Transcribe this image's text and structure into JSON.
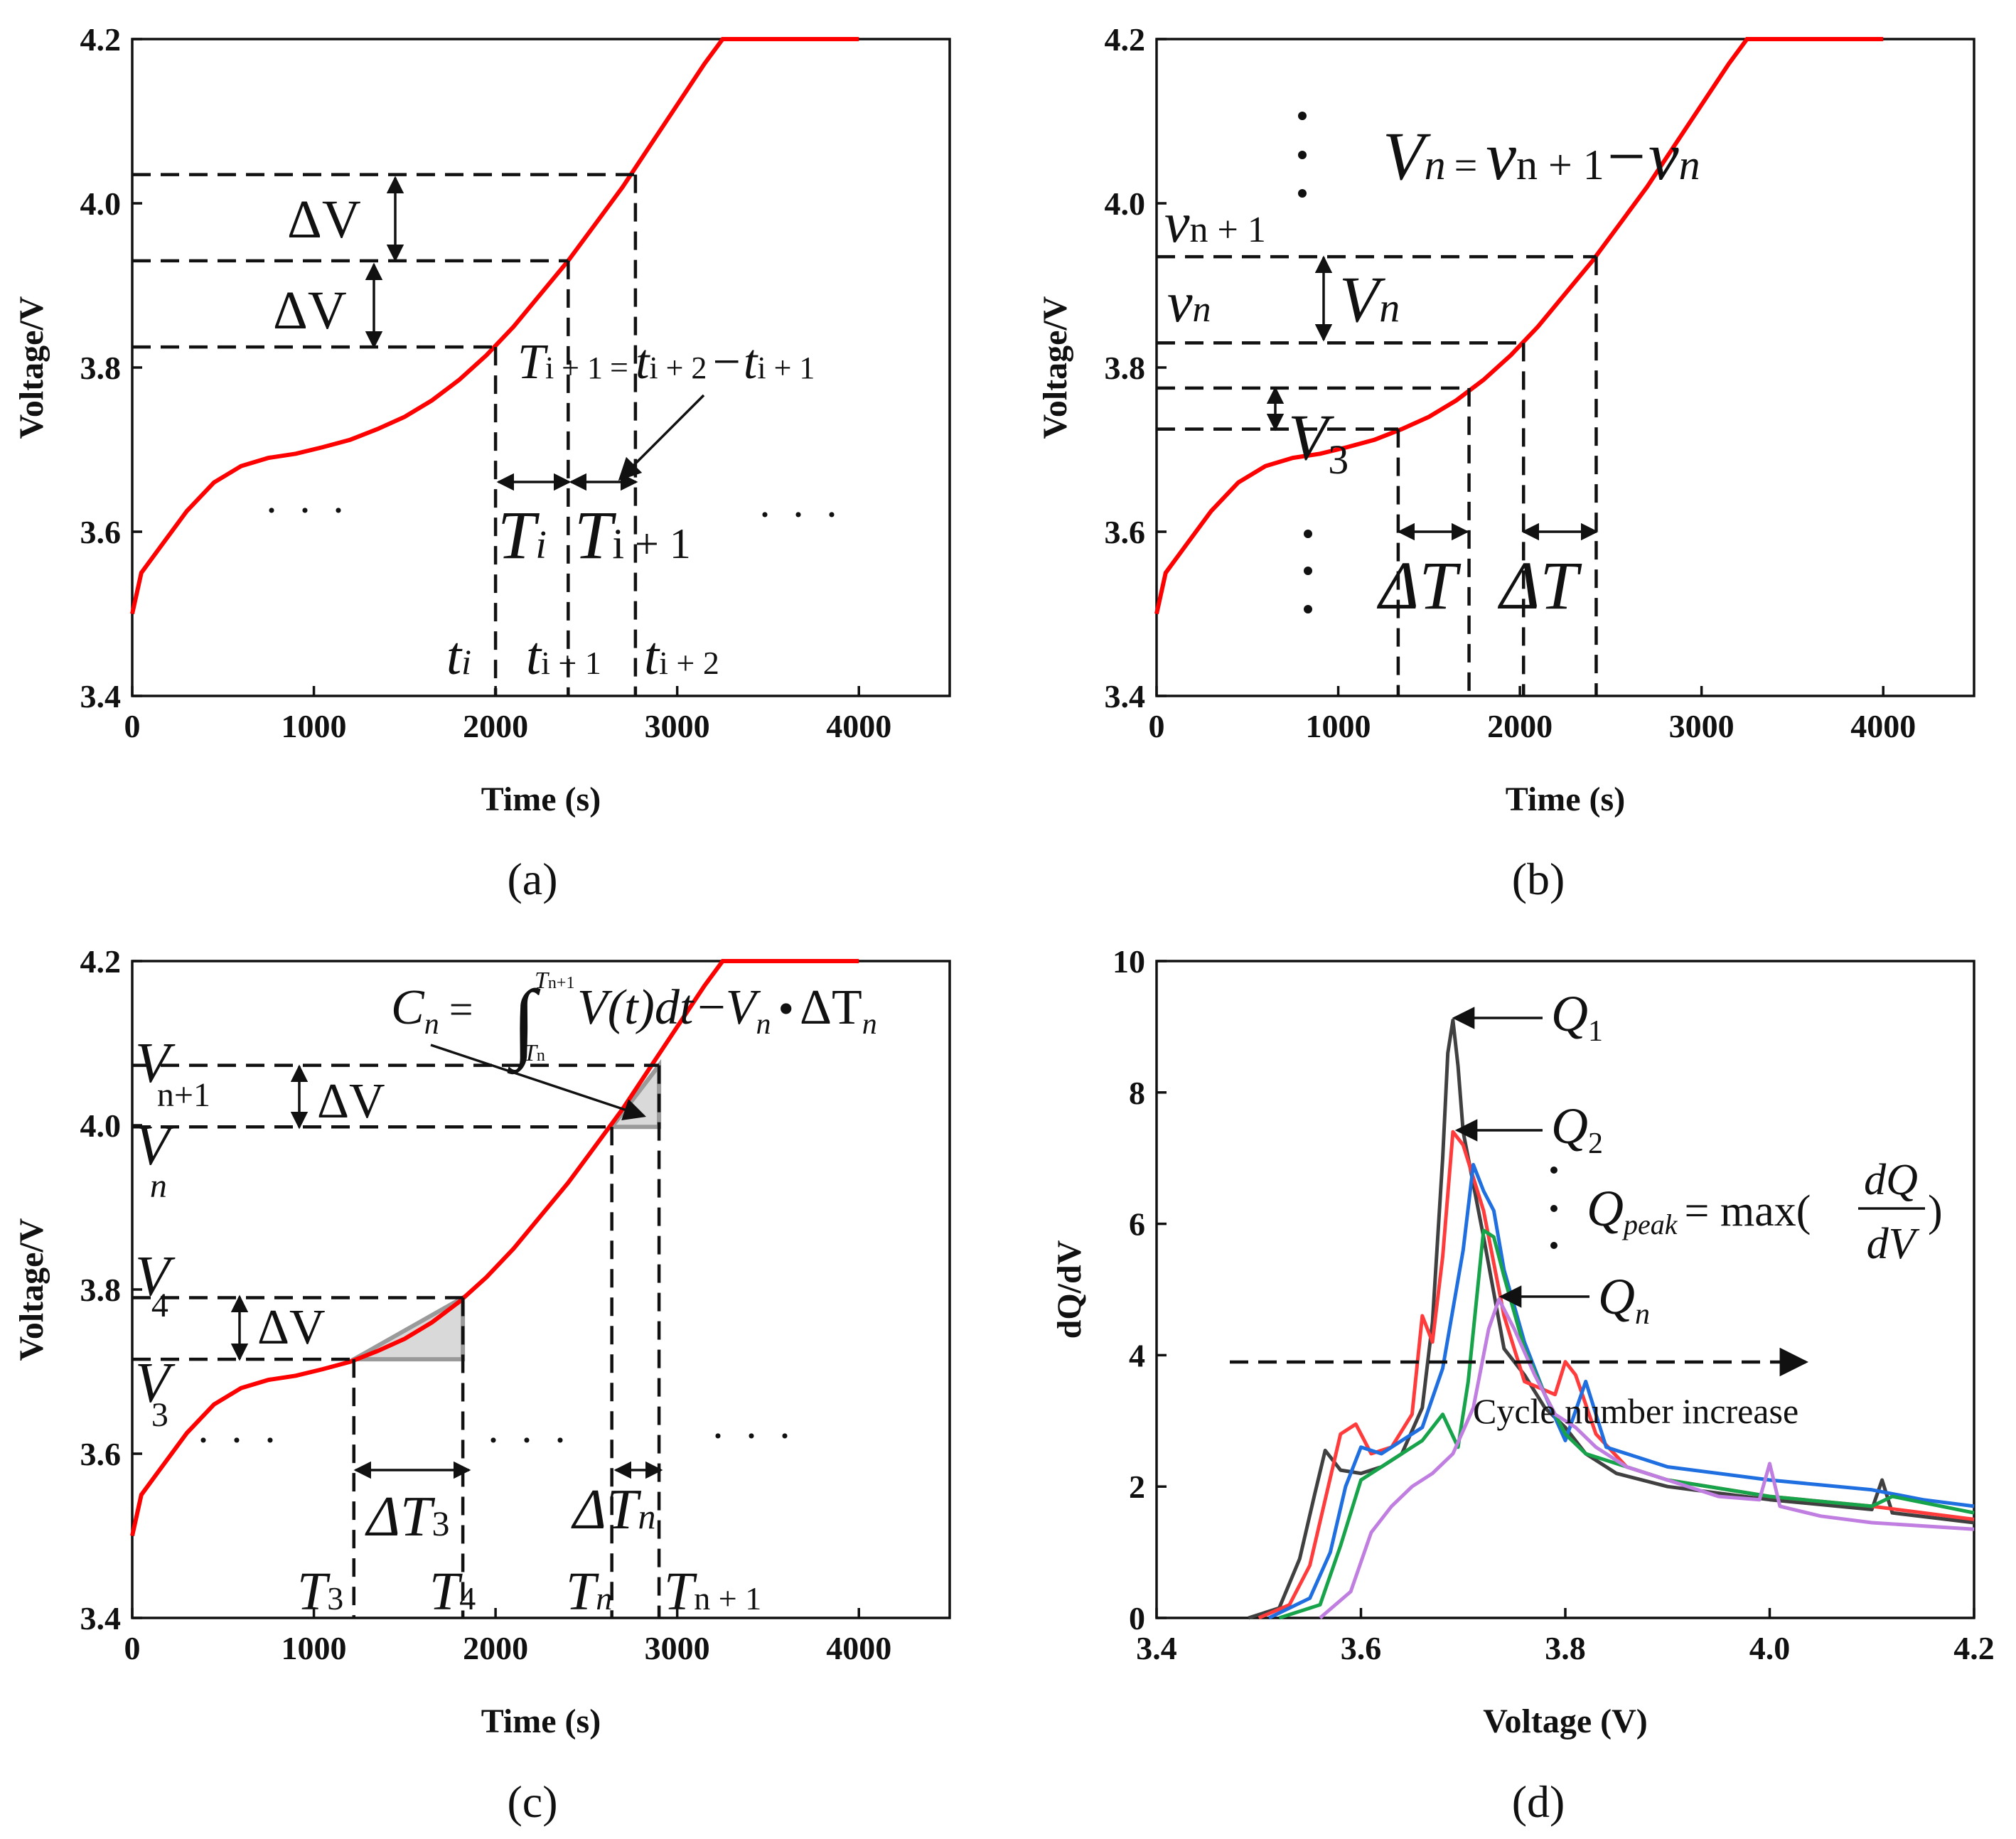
{
  "colors": {
    "charge_curve": "#ff0000",
    "series": [
      "#404040",
      "#ff3b3b",
      "#1f6fe0",
      "#16a34a",
      "#c07ee0"
    ],
    "triangle_fill": "#d9d9d9",
    "triangle_edge": "#9a9a9a"
  },
  "chart_data": [
    {
      "id": "a",
      "type": "line",
      "panel_label": "(a)",
      "xlabel": "Time (s)",
      "ylabel": "Voltage/V",
      "xlim": [
        0,
        4500
      ],
      "ylim": [
        3.4,
        4.2
      ],
      "xticks": [
        0,
        1000,
        2000,
        3000,
        4000
      ],
      "xtick_labels": [
        "0",
        "1000",
        "2000",
        "3000",
        "4000"
      ],
      "yticks": [
        3.4,
        3.6,
        3.8,
        4.0,
        4.2
      ],
      "ytick_labels": [
        "3.4",
        "3.6",
        "3.8",
        "4.0",
        "4.2"
      ],
      "series": [
        {
          "name": "charge voltage",
          "x": [
            0,
            50,
            150,
            300,
            450,
            600,
            750,
            900,
            1050,
            1200,
            1350,
            1500,
            1650,
            1800,
            1950,
            2100,
            2250,
            2400,
            2550,
            2700,
            2850,
            3000,
            3150,
            3250,
            3300,
            3500,
            4000
          ],
          "y": [
            3.5,
            3.55,
            3.58,
            3.625,
            3.66,
            3.68,
            3.69,
            3.695,
            3.703,
            3.712,
            3.725,
            3.74,
            3.76,
            3.785,
            3.815,
            3.85,
            3.89,
            3.93,
            3.975,
            4.02,
            4.07,
            4.12,
            4.17,
            4.2,
            4.2,
            4.2,
            4.2
          ]
        }
      ],
      "annotations": {
        "guide_times": [
          2000,
          2400,
          2770
        ],
        "guide_voltages": [
          3.825,
          3.93,
          4.035
        ],
        "delta_v_1": "ΔV",
        "delta_v_2": "ΔV",
        "T_i_main": "T",
        "T_i_sub": "i",
        "T_i1_main": "T",
        "T_i1_sub": "i + 1",
        "t_i_main": "t",
        "t_i_sub": "i",
        "t_i1_main": "t",
        "t_i1_sub": "i + 1",
        "t_i2_main": "t",
        "t_i2_sub": "i + 2",
        "eq_lhs": "T",
        "eq_lhs_sub": "i + 1",
        "eq_eq": "=",
        "eq_t1": "t",
        "eq_t1_sub": "i + 2",
        "eq_minus": "−",
        "eq_t2": "t",
        "eq_t2_sub": "i + 1",
        "ellipsis_left": "· · ·",
        "ellipsis_right": "· · ·"
      }
    },
    {
      "id": "b",
      "type": "line",
      "panel_label": "(b)",
      "xlabel": "Time (s)",
      "ylabel": "Voltage/V",
      "xlim": [
        0,
        4500
      ],
      "ylim": [
        3.4,
        4.2
      ],
      "xticks": [
        0,
        1000,
        2000,
        3000,
        4000
      ],
      "xtick_labels": [
        "0",
        "1000",
        "2000",
        "3000",
        "4000"
      ],
      "yticks": [
        3.4,
        3.6,
        3.8,
        4.0,
        4.2
      ],
      "ytick_labels": [
        "3.4",
        "3.6",
        "3.8",
        "4.0",
        "4.2"
      ],
      "series": [
        {
          "name": "charge voltage",
          "x": [
            0,
            50,
            150,
            300,
            450,
            600,
            750,
            900,
            1050,
            1200,
            1350,
            1500,
            1650,
            1800,
            1950,
            2100,
            2250,
            2400,
            2550,
            2700,
            2850,
            3000,
            3150,
            3250,
            3300,
            3500,
            4000
          ],
          "y": [
            3.5,
            3.55,
            3.58,
            3.625,
            3.66,
            3.68,
            3.69,
            3.695,
            3.703,
            3.712,
            3.725,
            3.74,
            3.76,
            3.785,
            3.815,
            3.85,
            3.89,
            3.93,
            3.975,
            4.02,
            4.07,
            4.12,
            4.17,
            4.2,
            4.2,
            4.2,
            4.2
          ]
        }
      ],
      "annotations": {
        "guide_times": [
          1330,
          1720,
          2020,
          2420
        ],
        "guide_voltages": [
          3.725,
          3.775,
          3.83,
          3.935
        ],
        "v_n1_main": "v",
        "v_n1_sub": "n + 1",
        "v_n_main": "v",
        "v_n_sub": "n",
        "Vn_label_main": "V",
        "Vn_label_sub": "n",
        "V3_main": "V",
        "V3_sub": "3",
        "dT1": "ΔT",
        "dT2": "ΔT",
        "eq_lhs": "V",
        "eq_lhs_sub": "n",
        "eq_eq": "=",
        "eq_t1": "v",
        "eq_t1_sub": "n + 1",
        "eq_minus": "−",
        "eq_t2": "v",
        "eq_t2_sub": "n"
      }
    },
    {
      "id": "c",
      "type": "line",
      "panel_label": "(c)",
      "xlabel": "Time (s)",
      "ylabel": "Voltage/V",
      "xlim": [
        0,
        4500
      ],
      "ylim": [
        3.4,
        4.2
      ],
      "xticks": [
        0,
        1000,
        2000,
        3000,
        4000
      ],
      "xtick_labels": [
        "0",
        "1000",
        "2000",
        "3000",
        "4000"
      ],
      "yticks": [
        3.4,
        3.6,
        3.8,
        4.0,
        4.2
      ],
      "ytick_labels": [
        "3.4",
        "3.6",
        "3.8",
        "4.0",
        "4.2"
      ],
      "series": [
        {
          "name": "charge voltage",
          "x": [
            0,
            50,
            150,
            300,
            450,
            600,
            750,
            900,
            1050,
            1200,
            1350,
            1500,
            1650,
            1800,
            1950,
            2100,
            2250,
            2400,
            2550,
            2700,
            2850,
            3000,
            3150,
            3250,
            3300,
            3500,
            4000
          ],
          "y": [
            3.5,
            3.55,
            3.58,
            3.625,
            3.66,
            3.68,
            3.69,
            3.695,
            3.703,
            3.712,
            3.725,
            3.74,
            3.76,
            3.785,
            3.815,
            3.85,
            3.89,
            3.93,
            3.975,
            4.02,
            4.07,
            4.12,
            4.17,
            4.2,
            4.2,
            4.2,
            4.2
          ]
        }
      ],
      "annotations": {
        "guide_times": [
          1220,
          1820,
          2640,
          2900
        ],
        "guide_voltages": [
          3.715,
          3.79,
          3.998,
          4.073
        ],
        "V_n1_main": "V",
        "V_n1_sub": "n+1",
        "V_n_main": "V",
        "V_n_sub": "n",
        "V_4_main": "V",
        "V_4_sub": "4",
        "V_3_main": "V",
        "V_3_sub": "3",
        "dV_top": "ΔV",
        "dV_bottom": "ΔV",
        "dT3_main": "ΔT",
        "dT3_sub": "3",
        "dTn_main": "ΔT",
        "dTn_sub": "n",
        "T3_main": "T",
        "T3_sub": "3",
        "T4_main": "T",
        "T4_sub": "4",
        "Tn_main": "T",
        "Tn_sub": "n",
        "Tn1_main": "T",
        "Tn1_sub": "n + 1",
        "eq_C": "C",
        "eq_C_sub": "n",
        "eq_eq": "=",
        "eq_int": "∫",
        "eq_upper": "T",
        "eq_upper_sub": "n+1",
        "eq_lower": "T",
        "eq_lower_sub": "n",
        "eq_body": "V(t)dt",
        "eq_minus": "−",
        "eq_V": "V",
        "eq_V_sub": "n",
        "eq_bullet": "•",
        "eq_dT": "ΔT",
        "eq_dT_sub": "n",
        "ellipsis_1": "· · ·",
        "ellipsis_2": "· · ·",
        "ellipsis_3": "· · ·"
      }
    },
    {
      "id": "d",
      "type": "line",
      "panel_label": "(d)",
      "xlabel": "Voltage (V)",
      "ylabel": "dQ/dV",
      "xlim": [
        3.4,
        4.2
      ],
      "ylim": [
        0,
        10
      ],
      "xticks": [
        3.4,
        3.6,
        3.8,
        4.0,
        4.2
      ],
      "xtick_labels": [
        "3.4",
        "3.6",
        "3.8",
        "4.0",
        "4.2"
      ],
      "yticks": [
        0,
        2,
        4,
        6,
        8,
        10
      ],
      "ytick_labels": [
        "0",
        "2",
        "4",
        "6",
        "8",
        "10"
      ],
      "series": [
        {
          "name": "cycle 1",
          "x": [
            3.49,
            3.52,
            3.54,
            3.555,
            3.565,
            3.58,
            3.6,
            3.62,
            3.64,
            3.66,
            3.67,
            3.68,
            3.685,
            3.69,
            3.695,
            3.7,
            3.72,
            3.74,
            3.76,
            3.78,
            3.8,
            3.82,
            3.85,
            3.9,
            4.0,
            4.1,
            4.11,
            4.12,
            4.2
          ],
          "y": [
            0,
            0.15,
            0.9,
            1.9,
            2.55,
            2.25,
            2.2,
            2.3,
            2.5,
            3.2,
            4.5,
            7.0,
            8.6,
            9.1,
            8.4,
            7.4,
            5.8,
            4.1,
            3.7,
            3.2,
            2.9,
            2.5,
            2.2,
            2.0,
            1.8,
            1.65,
            2.1,
            1.6,
            1.45
          ]
        },
        {
          "name": "cycle 2",
          "x": [
            3.5,
            3.53,
            3.55,
            3.565,
            3.58,
            3.595,
            3.61,
            3.63,
            3.65,
            3.66,
            3.67,
            3.68,
            3.69,
            3.7,
            3.72,
            3.74,
            3.76,
            3.79,
            3.8,
            3.81,
            3.83,
            3.86,
            3.9,
            4.0,
            4.1,
            4.2
          ],
          "y": [
            0,
            0.2,
            0.8,
            1.8,
            2.8,
            2.95,
            2.5,
            2.6,
            3.1,
            4.6,
            4.2,
            5.5,
            7.4,
            7.2,
            6.2,
            4.6,
            3.6,
            3.4,
            3.9,
            3.7,
            2.8,
            2.3,
            2.1,
            1.85,
            1.7,
            1.5
          ]
        },
        {
          "name": "cycle 3",
          "x": [
            3.51,
            3.55,
            3.57,
            3.585,
            3.6,
            3.62,
            3.64,
            3.66,
            3.68,
            3.7,
            3.71,
            3.72,
            3.73,
            3.74,
            3.76,
            3.78,
            3.8,
            3.82,
            3.84,
            3.9,
            4.0,
            4.1,
            4.15,
            4.2
          ],
          "y": [
            0,
            0.3,
            1.0,
            2.0,
            2.6,
            2.5,
            2.7,
            2.9,
            3.8,
            5.6,
            6.9,
            6.5,
            6.2,
            5.3,
            4.2,
            3.4,
            2.7,
            3.6,
            2.6,
            2.3,
            2.1,
            1.95,
            1.8,
            1.7
          ]
        },
        {
          "name": "cycle 4",
          "x": [
            3.52,
            3.56,
            3.58,
            3.6,
            3.62,
            3.64,
            3.66,
            3.68,
            3.695,
            3.705,
            3.72,
            3.73,
            3.74,
            3.76,
            3.78,
            3.8,
            3.82,
            3.84,
            3.9,
            4.0,
            4.1,
            4.12,
            4.2
          ],
          "y": [
            0,
            0.2,
            1.1,
            2.1,
            2.3,
            2.5,
            2.7,
            3.1,
            2.6,
            3.6,
            5.9,
            5.8,
            5.2,
            4.1,
            3.4,
            2.8,
            2.5,
            2.4,
            2.1,
            1.85,
            1.7,
            1.85,
            1.6
          ]
        },
        {
          "name": "cycle 5",
          "x": [
            3.56,
            3.59,
            3.61,
            3.63,
            3.65,
            3.67,
            3.69,
            3.71,
            3.725,
            3.735,
            3.75,
            3.77,
            3.79,
            3.81,
            3.83,
            3.86,
            3.9,
            3.95,
            3.99,
            4.0,
            4.01,
            4.05,
            4.1,
            4.2
          ],
          "y": [
            0,
            0.4,
            1.3,
            1.7,
            2.0,
            2.2,
            2.5,
            3.2,
            4.4,
            4.85,
            4.4,
            3.7,
            3.1,
            2.9,
            2.6,
            2.3,
            2.1,
            1.85,
            1.8,
            2.35,
            1.7,
            1.55,
            1.45,
            1.35
          ]
        }
      ],
      "annotations": {
        "Q1_main": "Q",
        "Q1_sub": "1",
        "Q2_main": "Q",
        "Q2_sub": "2",
        "Qn_main": "Q",
        "Qn_sub": "n",
        "peak_main": "Q",
        "peak_sub": "peak",
        "peak_eq": "= max(",
        "peak_num": "dQ",
        "peak_den": "dV",
        "peak_close": ")",
        "trend_label": "Cycle number increase"
      }
    }
  ]
}
